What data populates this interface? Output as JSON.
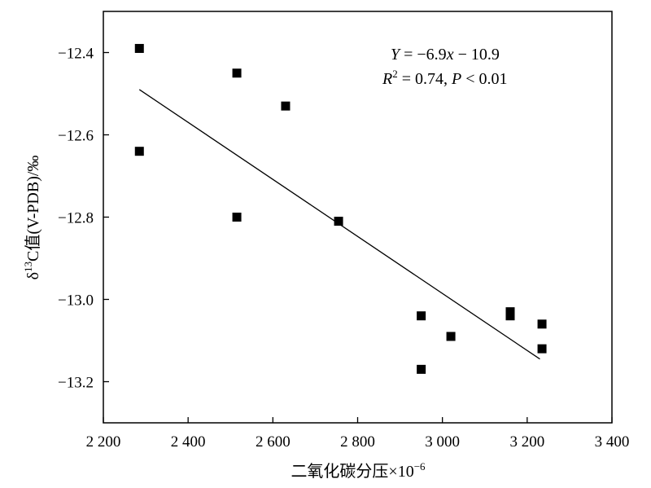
{
  "chart_data": {
    "type": "scatter",
    "xlabel": "二氧化碳分压×10",
    "xlabel_exp": "−6",
    "ylabel": "δ",
    "ylabel_sup": "13",
    "ylabel_rest": "C值(V-PDB)/‰",
    "xlim": [
      2200,
      3400
    ],
    "ylim": [
      -13.3,
      -12.3
    ],
    "x_ticks": [
      2200,
      2400,
      2600,
      2800,
      3000,
      3200,
      3400
    ],
    "x_tick_labels": [
      "2 200",
      "2 400",
      "2 600",
      "2 800",
      "3 000",
      "3 200",
      "3 400"
    ],
    "y_ticks": [
      -12.4,
      -12.6,
      -12.8,
      -13.0,
      -13.2
    ],
    "y_tick_labels": [
      "−12.4",
      "−12.6",
      "−12.8",
      "−13.0",
      "−13.2"
    ],
    "grid": false,
    "legend": "none",
    "marker": "square",
    "marker_color": "#000000",
    "points": [
      {
        "x": 2285,
        "y": -12.39
      },
      {
        "x": 2285,
        "y": -12.64
      },
      {
        "x": 2515,
        "y": -12.45
      },
      {
        "x": 2515,
        "y": -12.8
      },
      {
        "x": 2630,
        "y": -12.53
      },
      {
        "x": 2755,
        "y": -12.81
      },
      {
        "x": 2950,
        "y": -13.04
      },
      {
        "x": 2950,
        "y": -13.17
      },
      {
        "x": 3020,
        "y": -13.09
      },
      {
        "x": 3160,
        "y": -13.03
      },
      {
        "x": 3160,
        "y": -13.04
      },
      {
        "x": 3235,
        "y": -13.06
      },
      {
        "x": 3235,
        "y": -13.12
      }
    ],
    "fit_line": {
      "x_start": 2285,
      "y_start": -12.49,
      "x_end": 3230,
      "y_end": -13.145
    },
    "annotation": {
      "line1_var": "Y",
      "line1_eq": " = −6.9",
      "line1_x": "x",
      "line1_rest": " −  10.9",
      "line2_var": "R",
      "line2_sup": "2",
      "line2_mid": " = 0.74, ",
      "line2_p": "P",
      "line2_rest": " < 0.01"
    }
  }
}
